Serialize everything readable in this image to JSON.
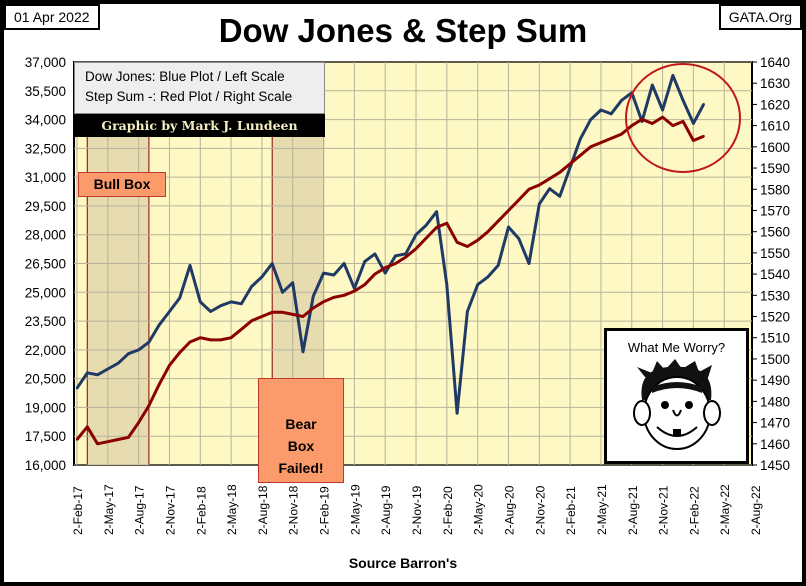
{
  "header": {
    "date": "01 Apr 2022",
    "site": "GATA.Org",
    "source": "Source Barron's"
  },
  "legend": {
    "line1": "Dow Jones: Blue Plot / Left Scale",
    "line2": "Step Sum -: Red Plot / Right Scale",
    "credit": "Graphic by Mark J. Lundeen"
  },
  "annotations": {
    "bull_box": "Bull Box",
    "bear_box": "Bear Box Failed!",
    "mad": "What Me Worry?"
  },
  "colors": {
    "dow": "#1f3a64",
    "step": "#8b0000",
    "plot_bg": "#fdf8c4",
    "circle": "#c0171c"
  },
  "chart_data": {
    "type": "line",
    "title": "Dow Jones & Step Sum",
    "xlabel": "Source Barron's",
    "x_ticks": [
      "2-Feb-17",
      "2-May-17",
      "2-Aug-17",
      "2-Nov-17",
      "2-Feb-18",
      "2-May-18",
      "2-Aug-18",
      "2-Nov-18",
      "2-Feb-19",
      "2-May-19",
      "2-Aug-19",
      "2-Nov-19",
      "2-Feb-20",
      "2-May-20",
      "2-Aug-20",
      "2-Nov-20",
      "2-Feb-21",
      "2-May-21",
      "2-Aug-21",
      "2-Nov-21",
      "2-Feb-22",
      "2-May-22",
      "2-Aug-22"
    ],
    "y_left": {
      "ticks": [
        "16,000",
        "17,500",
        "19,000",
        "20,500",
        "22,000",
        "23,500",
        "25,000",
        "26,500",
        "28,000",
        "29,500",
        "31,000",
        "32,500",
        "34,000",
        "35,500",
        "37,000"
      ],
      "range": [
        16000,
        37000
      ]
    },
    "y_right": {
      "ticks": [
        "1450",
        "1460",
        "1470",
        "1480",
        "1490",
        "1500",
        "1510",
        "1520",
        "1530",
        "1540",
        "1550",
        "1560",
        "1570",
        "1580",
        "1590",
        "1600",
        "1610",
        "1620",
        "1630",
        "1640"
      ],
      "range": [
        1450,
        1640
      ]
    },
    "x_start": "2017-02",
    "x_unit": "month",
    "series": [
      {
        "name": "Dow Jones",
        "axis": "left",
        "values": [
          20000,
          20800,
          20700,
          21000,
          21300,
          21800,
          22000,
          22400,
          23300,
          24000,
          24700,
          26400,
          24500,
          24000,
          24300,
          24500,
          24400,
          25300,
          25800,
          26500,
          25000,
          25500,
          21900,
          24800,
          26000,
          25900,
          26500,
          25200,
          26600,
          27000,
          26000,
          26900,
          27000,
          28000,
          28500,
          29200,
          25400,
          18700,
          24000,
          25400,
          25800,
          26400,
          28400,
          27800,
          26500,
          29600,
          30400,
          30000,
          31500,
          33000,
          34000,
          34500,
          34300,
          35000,
          35400,
          33900,
          35800,
          34500,
          36300,
          35000,
          33800,
          34800
        ]
      },
      {
        "name": "Step Sum",
        "axis": "right",
        "values": [
          1462,
          1468,
          1460,
          1461,
          1462,
          1463,
          1470,
          1478,
          1488,
          1497,
          1503,
          1508,
          1510,
          1509,
          1509,
          1510,
          1514,
          1518,
          1520,
          1522,
          1522,
          1521,
          1520,
          1524,
          1527,
          1529,
          1530,
          1532,
          1535,
          1540,
          1543,
          1545,
          1548,
          1552,
          1557,
          1562,
          1564,
          1555,
          1553,
          1556,
          1560,
          1565,
          1570,
          1575,
          1580,
          1582,
          1585,
          1588,
          1592,
          1596,
          1600,
          1602,
          1604,
          1606,
          1610,
          1613,
          1611,
          1614,
          1610,
          1612,
          1603,
          1605
        ]
      }
    ],
    "shaded_regions": [
      [
        "2017-03",
        "2017-08"
      ],
      [
        "2018-09",
        "2019-01"
      ]
    ],
    "grid": true
  }
}
